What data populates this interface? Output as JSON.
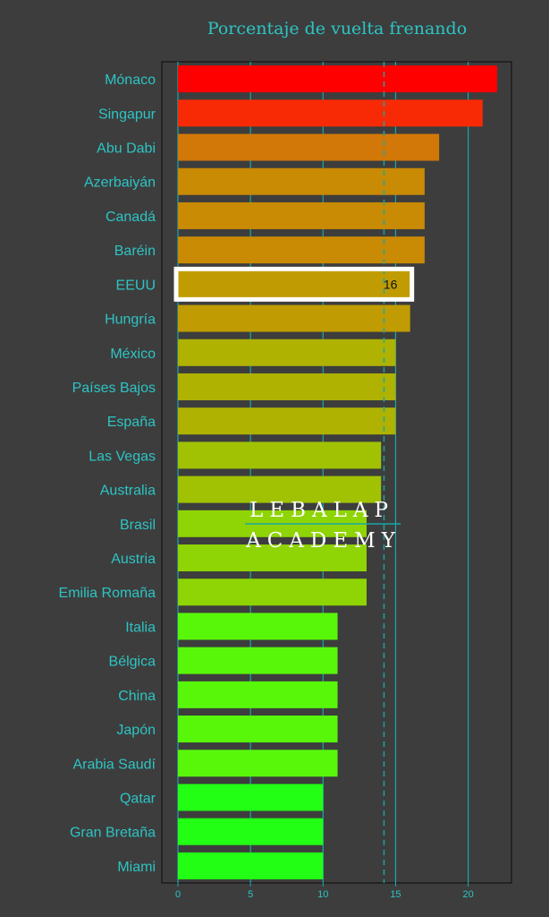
{
  "chart_data": {
    "type": "bar",
    "orientation": "horizontal",
    "title": "Porcentaje de vuelta frenando",
    "xlabel": "",
    "ylabel": "",
    "categories": [
      "Mónaco",
      "Singapur",
      "Abu Dabi",
      "Azerbaiyán",
      "Canadá",
      "Baréin",
      "EEUU",
      "Hungría",
      "México",
      "Países Bajos",
      "España",
      "Las Vegas",
      "Australia",
      "Brasil",
      "Austria",
      "Emilia Romaña",
      "Italia",
      "Bélgica",
      "China",
      "Japón",
      "Arabia Saudí",
      "Qatar",
      "Gran Bretaña",
      "Miami"
    ],
    "values": [
      22,
      21,
      18,
      17,
      17,
      17,
      16,
      16,
      15,
      15,
      15,
      14,
      14,
      13,
      13,
      13,
      11,
      11,
      11,
      11,
      11,
      10,
      10,
      10
    ],
    "colors": [
      "#ff0000",
      "#f72a05",
      "#d27808",
      "#c98a04",
      "#c98a04",
      "#c98a04",
      "#c09c02",
      "#c09c02",
      "#afb201",
      "#afb201",
      "#afb201",
      "#a0c203",
      "#a0c203",
      "#8fd404",
      "#8fd404",
      "#8fd404",
      "#58f70a",
      "#58f70a",
      "#58f70a",
      "#58f70a",
      "#58f70a",
      "#22ff14",
      "#22ff14",
      "#22ff14"
    ],
    "xlim": [
      0,
      23
    ],
    "xticks": [
      0,
      5,
      10,
      15,
      20
    ],
    "mean_line": 14.2,
    "highlight": {
      "category": "EEUU",
      "value_label": "16"
    },
    "grid": true
  },
  "watermark": {
    "line1": "LEBALAP",
    "line2": "ACADEMY"
  },
  "style": {
    "background": "#3d3d3d",
    "text_color": "#2ec4c4",
    "grid_color": "#1aa8a8",
    "axis_color": "#151515"
  }
}
